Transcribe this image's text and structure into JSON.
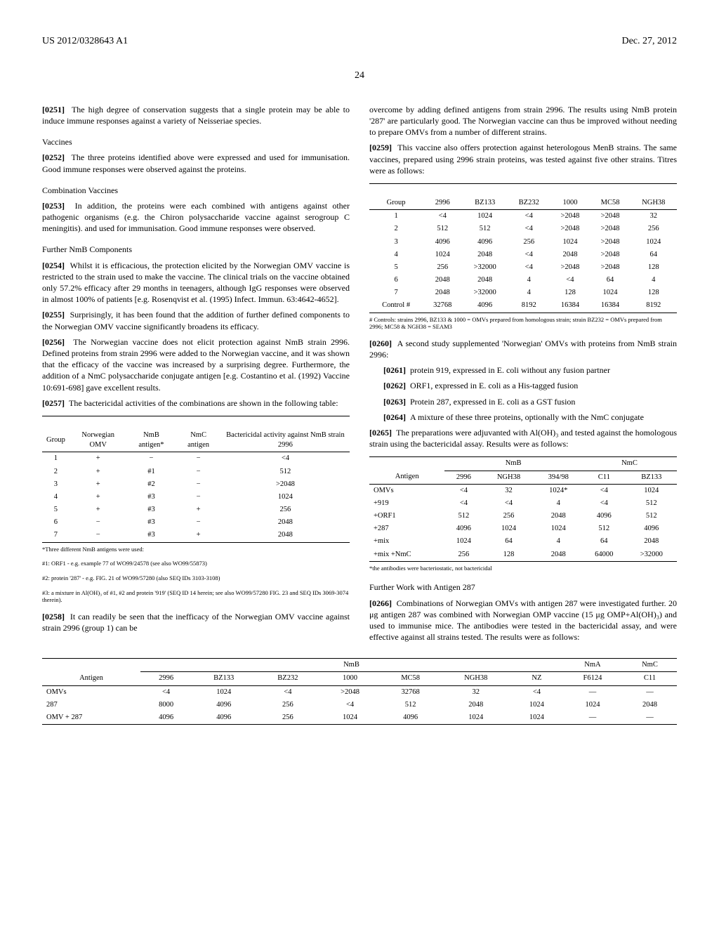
{
  "header": {
    "left": "US 2012/0328643 A1",
    "right": "Dec. 27, 2012"
  },
  "page_number": "24",
  "left_col": {
    "p0251": "The high degree of conservation suggests that a single protein may be able to induce immune responses against a variety of Neisseriae species.",
    "h_vaccines": "Vaccines",
    "p0252": "The three proteins identified above were expressed and used for immunisation. Good immune responses were observed against the proteins.",
    "h_combo": "Combination Vaccines",
    "p0253": "In addition, the proteins were each combined with antigens against other pathogenic organisms (e.g. the Chiron polysaccharide vaccine against serogroup C meningitis). and used for immunisation. Good immune responses were observed.",
    "h_further": "Further NmB Components",
    "p0254": "Whilst it is efficacious, the protection elicited by the Norwegian OMV vaccine is restricted to the strain used to make the vaccine. The clinical trials on the vaccine obtained only 57.2% efficacy after 29 months in teenagers, although IgG responses were observed in almost 100% of patients [e.g. Rosenqvist et al. (1995) Infect. Immun. 63:4642-4652].",
    "p0255": "Surprisingly, it has been found that the addition of further defined components to the Norwegian OMV vaccine significantly broadens its efficacy.",
    "p0256": "The Norwegian vaccine does not elicit protection against NmB strain 2996. Defined proteins from strain 2996 were added to the Norwegian vaccine, and it was shown that the efficacy of the vaccine was increased by a surprising degree. Furthermore, the addition of a NmC polysaccharide conjugate antigen [e.g. Costantino et al. (1992) Vaccine 10:691-698] gave excellent results.",
    "p0257": "The bactericidal activities of the combinations are shown in the following table:",
    "table1": {
      "type": "table",
      "columns": [
        "Group",
        "Norwegian OMV",
        "NmB antigen*",
        "NmC antigen",
        "Bactericidal activity against NmB strain 2996"
      ],
      "rows": [
        [
          "1",
          "+",
          "−",
          "−",
          "<4"
        ],
        [
          "2",
          "+",
          "#1",
          "−",
          "512"
        ],
        [
          "3",
          "+",
          "#2",
          "−",
          ">2048"
        ],
        [
          "4",
          "+",
          "#3",
          "−",
          "1024"
        ],
        [
          "5",
          "+",
          "#3",
          "+",
          "256"
        ],
        [
          "6",
          "−",
          "#3",
          "−",
          "2048"
        ],
        [
          "7",
          "−",
          "#3",
          "+",
          "2048"
        ]
      ],
      "footnotes": [
        "*Three different NmB antigens were used:",
        "#1: ORF1 - e.g. example 77 of WO99/24578 (see also WO99/55873)",
        "#2: protein '287' - e.g. FIG. 21 of WO99/57280 (also SEQ IDs 3103-3108)",
        "#3: a mixture in Al(OH)₃ of #1, #2 and protein '919' (SEQ ID 14 herein; see also WO99/57280 FIG. 23 and SEQ IDs 3069-3074 therein)."
      ]
    },
    "p0258": "It can readily be seen that the inefficacy of the Norwegian OMV vaccine against strain 2996 (group 1) can be"
  },
  "right_col": {
    "p_cont": "overcome by adding defined antigens from strain 2996. The results using NmB protein '287' are particularly good. The Norwegian vaccine can thus be improved without needing to prepare OMVs from a number of different strains.",
    "p0259": "This vaccine also offers protection against heterologous MenB strains. The same vaccines, prepared using 2996 strain proteins, was tested against five other strains. Titres were as follows:",
    "table2": {
      "type": "table",
      "columns": [
        "Group",
        "2996",
        "BZ133",
        "BZ232",
        "1000",
        "MC58",
        "NGH38"
      ],
      "rows": [
        [
          "1",
          "<4",
          "1024",
          "<4",
          ">2048",
          ">2048",
          "32"
        ],
        [
          "2",
          "512",
          "512",
          "<4",
          ">2048",
          ">2048",
          "256"
        ],
        [
          "3",
          "4096",
          "4096",
          "256",
          "1024",
          ">2048",
          "1024"
        ],
        [
          "4",
          "1024",
          "2048",
          "<4",
          "2048",
          ">2048",
          "64"
        ],
        [
          "5",
          "256",
          ">32000",
          "<4",
          ">2048",
          ">2048",
          "128"
        ],
        [
          "6",
          "2048",
          "2048",
          "4",
          "<4",
          "64",
          "4"
        ],
        [
          "7",
          "2048",
          ">32000",
          "4",
          "128",
          "1024",
          "128"
        ],
        [
          "Control #",
          "32768",
          "4096",
          "8192",
          "16384",
          "16384",
          "8192"
        ]
      ],
      "footnote": "# Controls: strains 2996, BZ133 & 1000 = OMVs prepared from homologous strain; strain BZ232 = OMVs prepared from 2996; MC58 & NGH38 = SEAM3"
    },
    "p0260": "A second study supplemented 'Norwegian' OMVs with proteins from NmB strain 2996:",
    "b0261": "protein 919, expressed in E. coli without any fusion partner",
    "b0262": "ORF1, expressed in E. coli as a His-tagged fusion",
    "b0263": "Protein 287, expressed in E. coli as a GST fusion",
    "b0264": "A mixture of these three proteins, optionally with the NmC conjugate",
    "p0265": "The preparations were adjuvanted with Al(OH)₃ and tested against the homologous strain using the bactericidal assay. Results were as follows:",
    "table3": {
      "type": "table",
      "spanners": [
        "NmB",
        "NmC"
      ],
      "columns": [
        "Antigen",
        "2996",
        "NGH38",
        "394/98",
        "C11",
        "BZ133"
      ],
      "rows": [
        [
          "OMVs",
          "<4",
          "32",
          "1024*",
          "<4",
          "1024"
        ],
        [
          "+919",
          "<4",
          "<4",
          "4",
          "<4",
          "512"
        ],
        [
          "+ORF1",
          "512",
          "256",
          "2048",
          "4096",
          "512"
        ],
        [
          "+287",
          "4096",
          "1024",
          "1024",
          "512",
          "4096"
        ],
        [
          "+mix",
          "1024",
          "64",
          "4",
          "64",
          "2048"
        ],
        [
          "+mix +NmC",
          "256",
          "128",
          "2048",
          "64000",
          ">32000"
        ]
      ],
      "footnote": "*the antibodies were bacteriostatic, not bactericidal"
    },
    "h_further287": "Further Work with Antigen 287",
    "p0266": "Combinations of Norwegian OMVs with antigen 287 were investigated further. 20 μg antigen 287 was combined with Norwegian OMP vaccine (15 μg OMP+Al(OH)₃) and used to immunise mice. The antibodies were tested in the bactericidal assay, and were effective against all strains tested. The results were as follows:"
  },
  "table4": {
    "type": "table",
    "spanners": [
      "NmB",
      "NmA",
      "NmC"
    ],
    "columns": [
      "Antigen",
      "2996",
      "BZ133",
      "BZ232",
      "1000",
      "MC58",
      "NGH38",
      "NZ",
      "F6124",
      "C11"
    ],
    "rows": [
      [
        "OMVs",
        "<4",
        "1024",
        "<4",
        ">2048",
        "32768",
        "32",
        "<4",
        "—",
        "—"
      ],
      [
        "287",
        "8000",
        "4096",
        "256",
        "<4",
        "512",
        "2048",
        "1024",
        "1024",
        "2048"
      ],
      [
        "OMV + 287",
        "4096",
        "4096",
        "256",
        "1024",
        "4096",
        "1024",
        "1024",
        "—",
        "—"
      ]
    ]
  }
}
